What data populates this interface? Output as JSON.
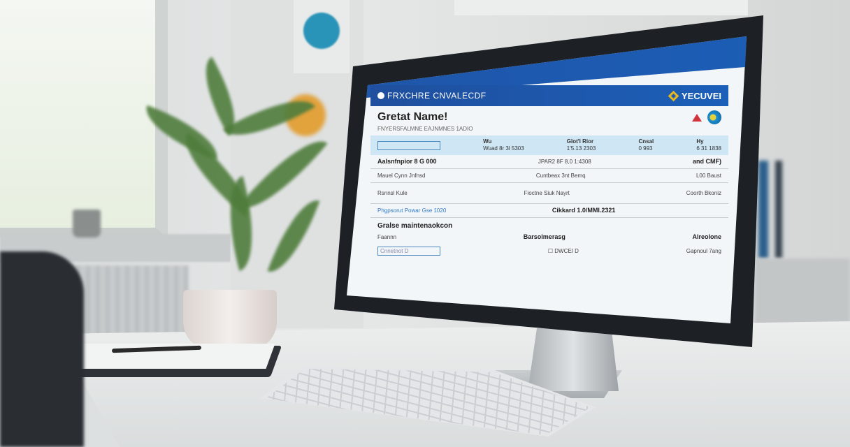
{
  "screen": {
    "header_title": "FRXCHRE CNVALECDF",
    "brand_logo": "YECUVEI",
    "page_title": "Gretat Name!",
    "subtitle": "FNYERSFALMNE EAJNMNES 1ADIO",
    "band": {
      "col1": "Wu",
      "col1_val": "Wuad 8r 3l 5303",
      "col2": "Glot'l Rior",
      "col2_val": "1'5.13 2303",
      "col3": "Cnsal",
      "col3_val": "0 993",
      "col4": "Hy",
      "col4_val": "6 31 1838"
    },
    "rows": [
      {
        "label": "Aalsnfnpior 8 G 000",
        "mid": "JPAR2 8F 8,0 1:4308",
        "right": "and CMF)"
      },
      {
        "label": "Mauel Cynn Jnfnsd",
        "mid": "Cuntbeax 3nt Bemq",
        "right": "L00 Baust"
      },
      {
        "label": "Rsnnsl Kule",
        "mid": "Fioctne Siuk Nayrt",
        "right": "Coorth Bkoniz"
      },
      {
        "label": "Cikkard 1.0/MMI.2321",
        "mid": "",
        "right": ""
      }
    ],
    "section_title": "Gralse maintenaokcon",
    "section_cols": [
      "Faannn",
      "Barsolmerasg",
      "Alreolone"
    ],
    "link_text": "Phgpsorut Powar Gse 1020",
    "input_placeholder": "Cnnetnot D",
    "checkbox_label": "DWCEI D",
    "footer_value": "Gapnoul 7ang"
  },
  "colors": {
    "header_blue": "#1f4f9e",
    "band_blue": "#cfe6f5",
    "logo_gold": "#e6b820"
  }
}
